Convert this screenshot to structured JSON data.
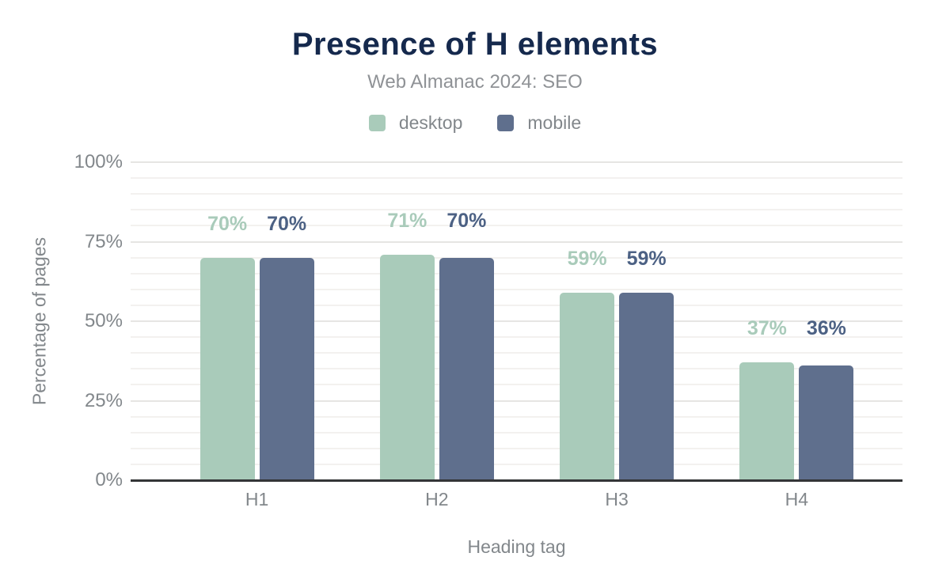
{
  "header": {
    "title": "Presence of H elements",
    "subtitle": "Web Almanac 2024: SEO"
  },
  "chart_data": {
    "type": "bar",
    "title": "Presence of H elements",
    "subtitle": "Web Almanac 2024: SEO",
    "categories": [
      "H1",
      "H2",
      "H3",
      "H4"
    ],
    "series": [
      {
        "name": "desktop",
        "color": "#a9cbba",
        "label_color": "#a9cbba",
        "values": [
          70,
          71,
          59,
          37
        ]
      },
      {
        "name": "mobile",
        "color": "#5f6f8d",
        "label_color": "#4c6184",
        "values": [
          70,
          70,
          59,
          36
        ]
      }
    ],
    "xlabel": "Heading tag",
    "ylabel": "Percentage of pages",
    "ylim": [
      0,
      100
    ],
    "yticks": [
      0,
      25,
      50,
      75,
      100
    ],
    "ytick_suffix": "%",
    "minor_grid_step": 5,
    "major_grid_step": 25,
    "grid": "on",
    "legend_position": "top",
    "value_suffix": "%"
  },
  "colors": {
    "background": "#ffffff",
    "title": "#15294d",
    "subtitle": "#8f9296",
    "axis_text": "#82878b",
    "axis_line": "#333537",
    "grid_major": "#e6e5e3",
    "grid_minor": "#f3f1ef"
  }
}
